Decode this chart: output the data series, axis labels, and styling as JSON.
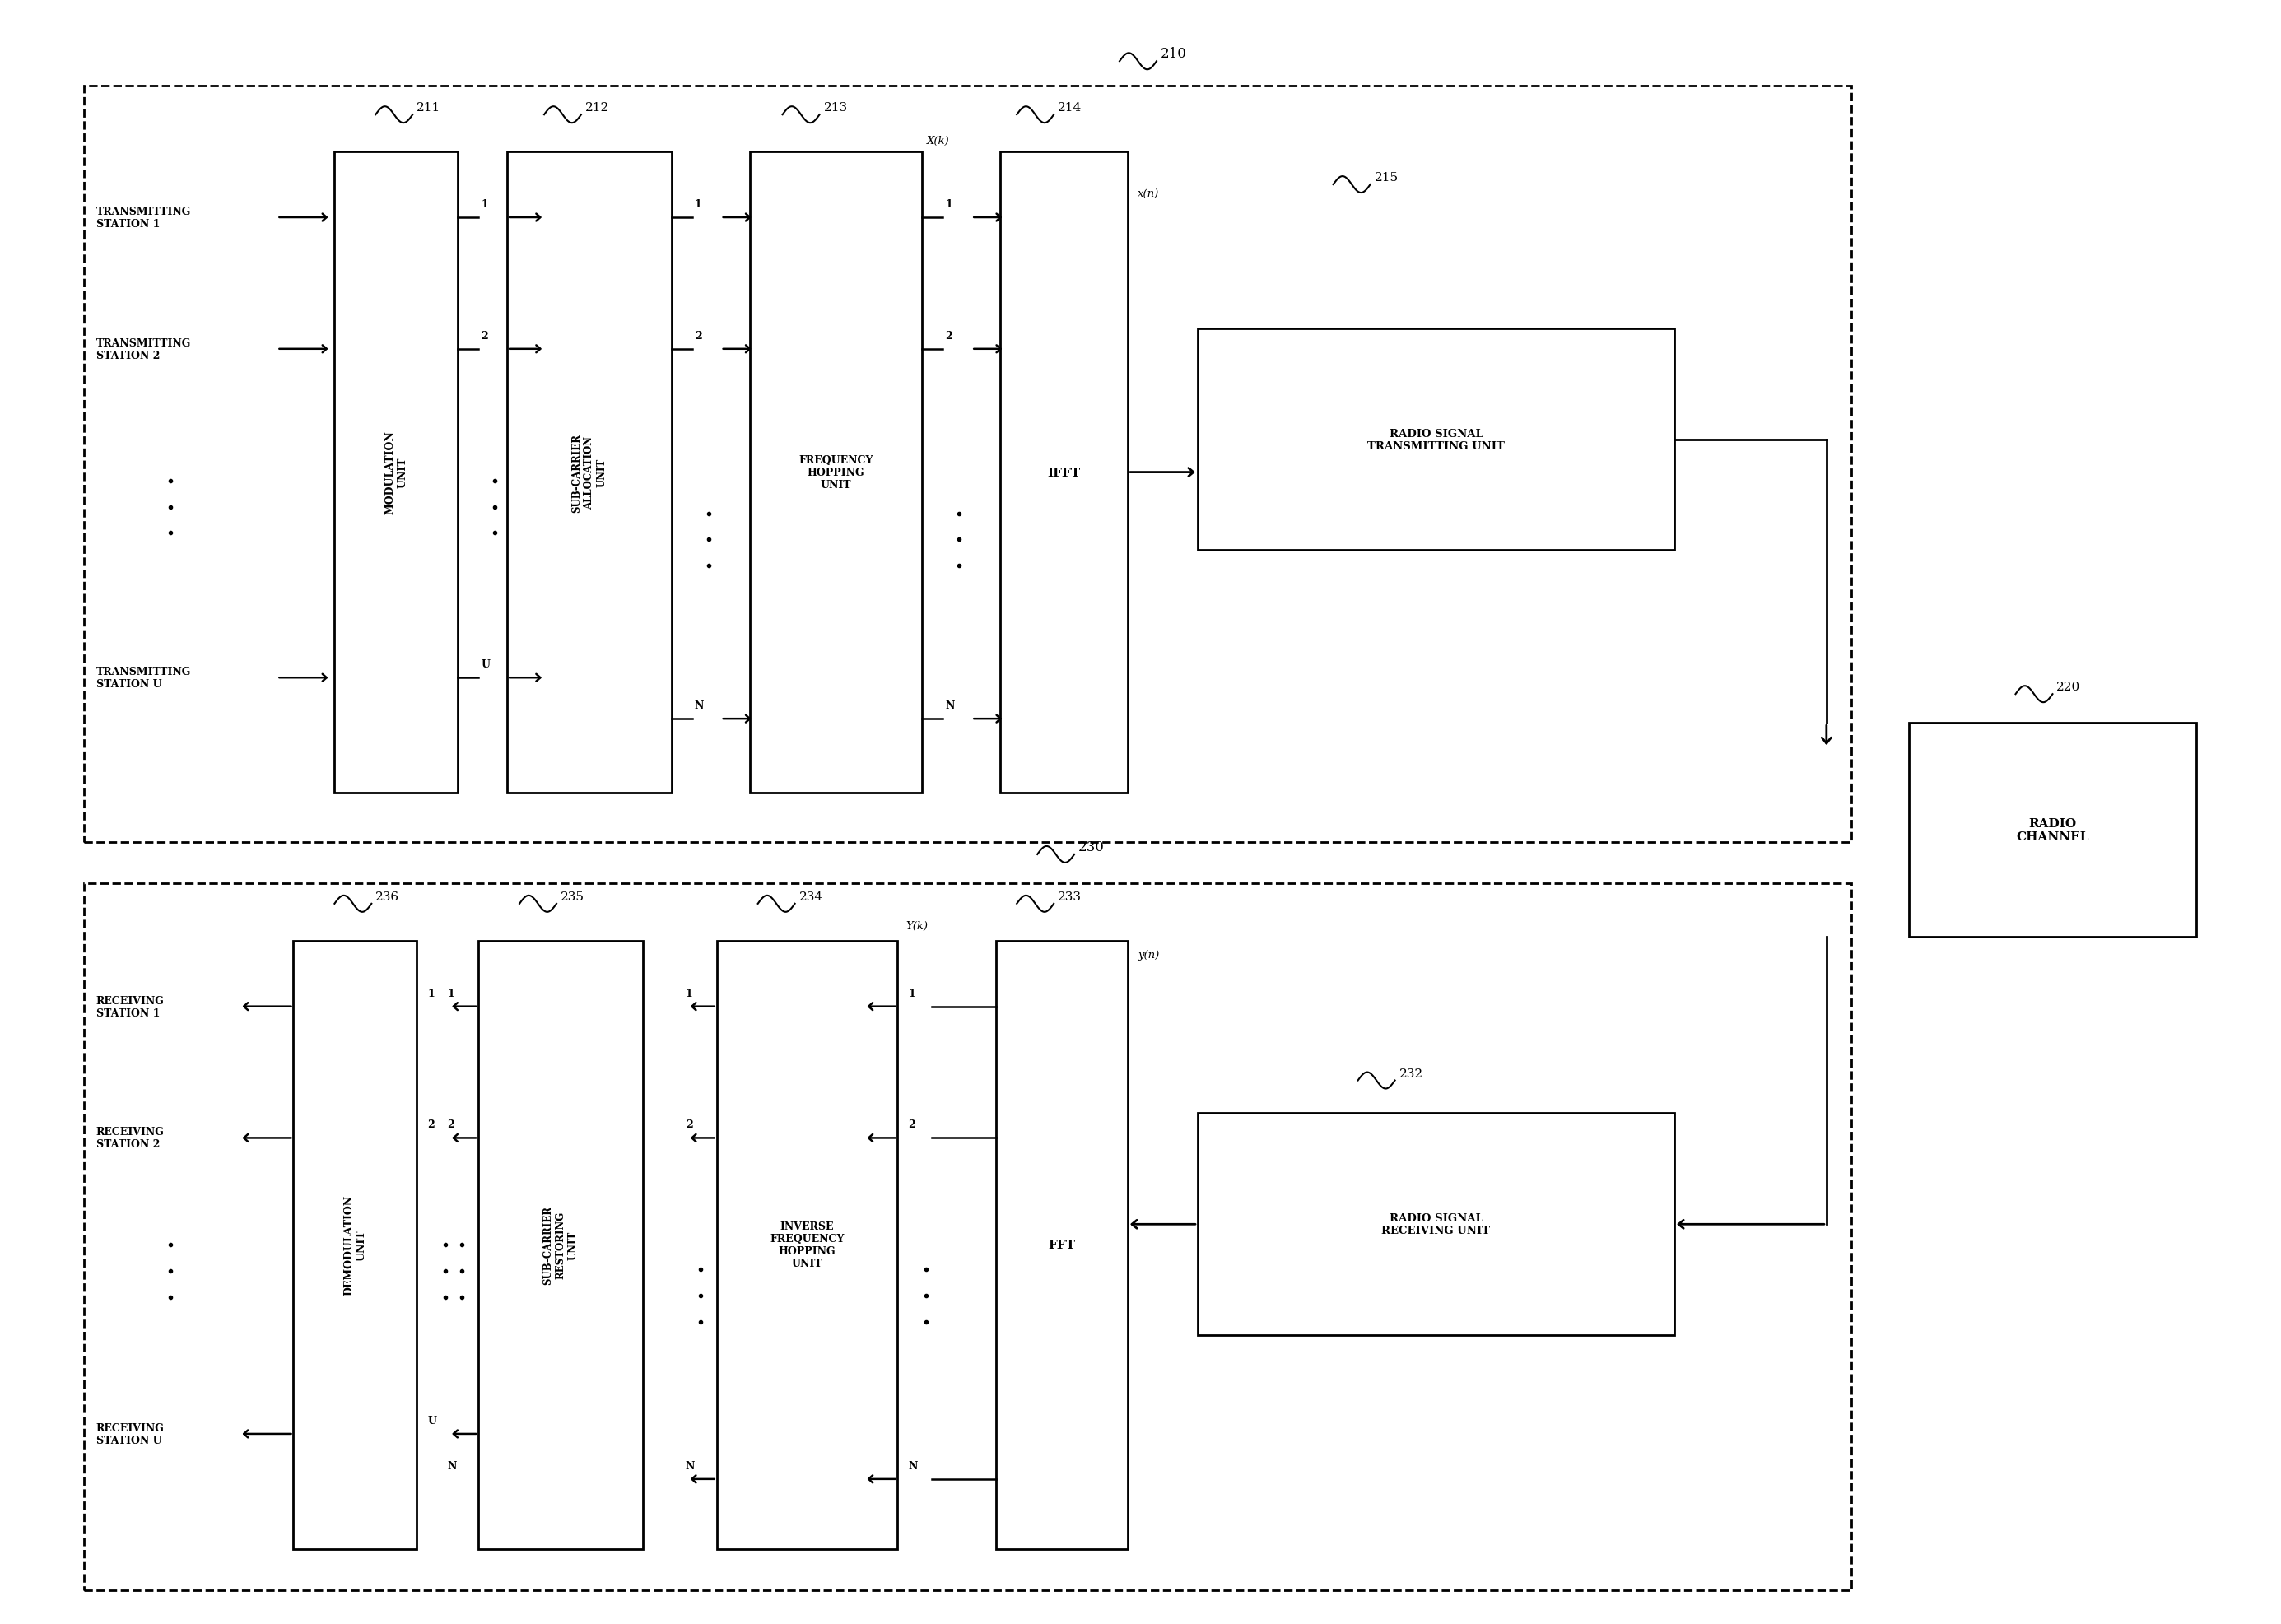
{
  "fig_width": 27.71,
  "fig_height": 19.74,
  "bg_color": "#ffffff",
  "line_color": "#000000",
  "transmitting_stations": [
    "TRANSMITTING\nSTATION 1",
    "TRANSMITTING\nSTATION 2",
    "TRANSMITTING\nSTATION U"
  ],
  "receiving_stations": [
    "RECEIVING\nSTATION 1",
    "RECEIVING\nSTATION 2",
    "RECEIVING\nSTATION U"
  ],
  "radio_channel_label": "RADIO\nCHANNEL"
}
